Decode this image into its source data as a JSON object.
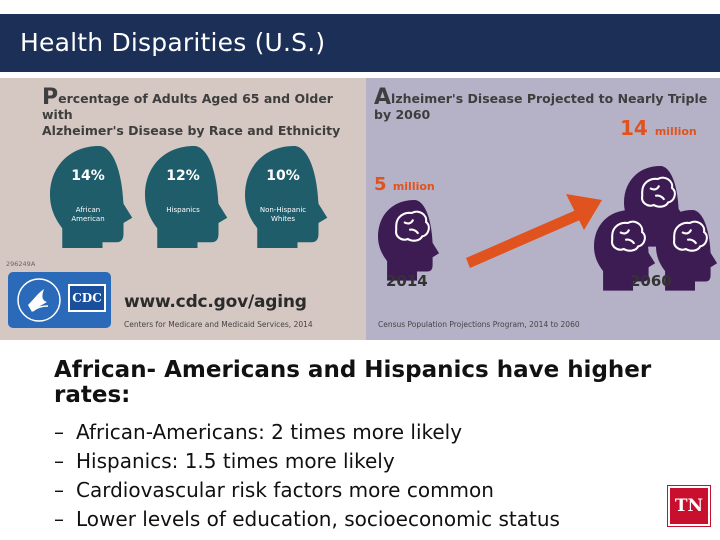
{
  "slide": {
    "title": "Health Disparities (U.S.)"
  },
  "infographic": {
    "left": {
      "title_initial": "P",
      "title_line1": "ercentage of Adults Aged 65 and Older with",
      "title_line2": "Alzheimer's Disease by Race and Ethnicity",
      "groups": [
        {
          "percent": "14%",
          "label1": "African",
          "label2": "American"
        },
        {
          "percent": "12%",
          "label1": "Hispanics",
          "label2": ""
        },
        {
          "percent": "10%",
          "label1": "Non-Hispanic",
          "label2": "Whites"
        }
      ],
      "code": "296249A",
      "logo_text": "CDC",
      "url": "www.cdc.gov/aging",
      "credit": "Centers for Medicare and Medicaid Services, 2014"
    },
    "right": {
      "title_initial": "A",
      "title_rest": "lzheimer's Disease Projected to Nearly Triple by 2060",
      "start_value": "5",
      "start_unit": "million",
      "end_value": "14",
      "end_unit": "million",
      "start_year": "2014",
      "end_year": "2060",
      "credit": "Census Population Projections Program, 2014 to 2060"
    }
  },
  "body": {
    "headline_line1": "African- Americans and Hispanics have higher",
    "headline_line2": "rates:",
    "bullets": [
      "African-Americans: 2 times more likely",
      "Hispanics: 1.5 times more likely",
      "Cardiovascular risk factors more common",
      "Lower levels of education, socioeconomic status"
    ],
    "dash": "–"
  },
  "logo": {
    "text": "TN"
  },
  "colors": {
    "title_bar": "#1b2f57",
    "left_panel": "#d5c8c2",
    "right_panel": "#b5b2c8",
    "teal_head": "#1f5d6b",
    "purple_head": "#3d1c54",
    "orange": "#e0531e",
    "cdc_blue": "#2a6ab8",
    "tn_red": "#c8102e"
  }
}
